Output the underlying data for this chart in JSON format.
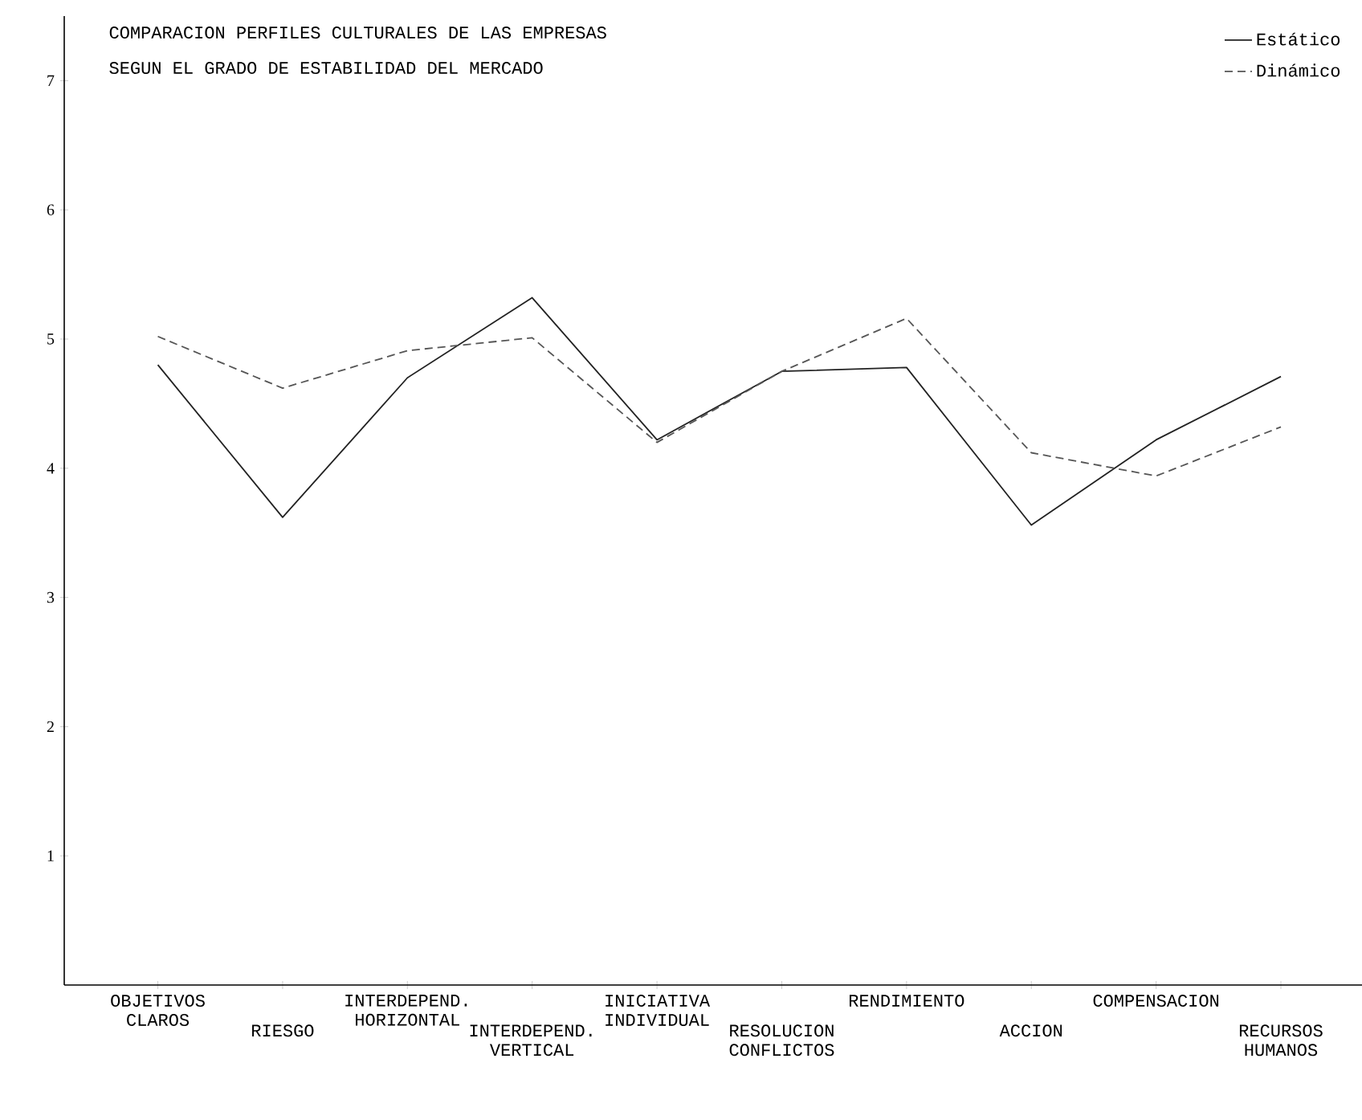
{
  "chart_data": {
    "type": "line",
    "title": "COMPARACION PERFILES CULTURALES DE LAS EMPRESAS",
    "subtitle": "SEGUN EL GRADO DE ESTABILIDAD DEL MERCADO",
    "categories": [
      "OBJETIVOS CLAROS",
      "RIESGO",
      "INTERDEPEND. HORIZONTAL",
      "INTERDEPEND. VERTICAL",
      "INICIATIVA INDIVIDUAL",
      "RESOLUCION CONFLICTOS",
      "RENDIMIENTO",
      "ACCION",
      "COMPENSACION",
      "RECURSOS HUMANOS"
    ],
    "series": [
      {
        "name": "Estático",
        "color": "#222222",
        "line_style": "solid",
        "values": [
          4.8,
          3.62,
          4.7,
          5.32,
          4.22,
          4.75,
          4.78,
          3.56,
          4.22,
          4.71
        ]
      },
      {
        "name": "Dinámico",
        "color": "#555555",
        "line_style": "dashed",
        "values": [
          5.02,
          4.62,
          4.91,
          5.01,
          4.2,
          4.75,
          5.16,
          4.12,
          3.94,
          4.32
        ]
      }
    ],
    "ylim": [
      0,
      7.5
    ],
    "yticks": [
      1,
      2,
      3,
      4,
      5,
      6,
      7
    ],
    "legend": "top right",
    "marker": "none",
    "grid": false
  }
}
